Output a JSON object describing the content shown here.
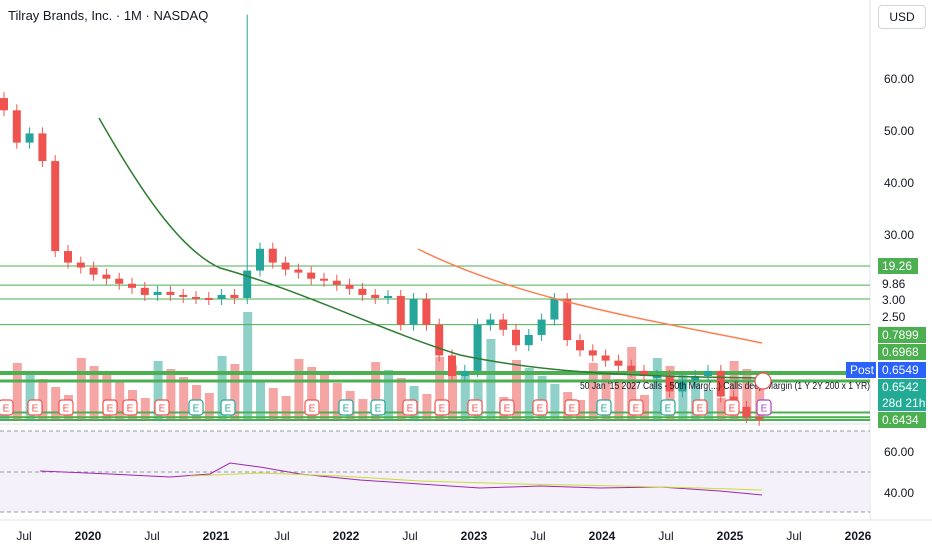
{
  "header": {
    "title": "Tilray Brands, Inc. · 1M · NASDAQ"
  },
  "toolbar": {
    "currency_label": "USD"
  },
  "price_axis": {
    "ticks": [
      "60.00",
      "50.00",
      "40.00",
      "30.00"
    ]
  },
  "price_tags": [
    {
      "label": "19.26",
      "color": "#4caf50"
    },
    {
      "label": "9.86",
      "color": "#4caf50"
    },
    {
      "label": "3.00",
      "color": "#4caf50"
    },
    {
      "label": "2.50",
      "color": "#4caf50"
    },
    {
      "label": "0.7899",
      "color": "#4caf50"
    },
    {
      "label": "0.6968",
      "color": "#4caf50"
    },
    {
      "label": "Post",
      "color": "#2962ff"
    },
    {
      "label": "0.6549",
      "color": "#2962ff"
    },
    {
      "label": "0.6542",
      "color": "#22ab94"
    },
    {
      "label": "28d 21h",
      "color": "#22ab94"
    },
    {
      "label": "0.6434",
      "color": "#4caf50"
    }
  ],
  "annotation": {
    "text": "50 Jan '15 2027 Calls - 50th Marg(...) Calls deep Margin (1 Y 2Y 200 x 1 YR)"
  },
  "rsi": {
    "ticks": [
      "60.00",
      "40.00"
    ]
  },
  "time_axis": {
    "ticks": [
      {
        "label": "Jul",
        "bold": false
      },
      {
        "label": "2020",
        "bold": true
      },
      {
        "label": "Jul",
        "bold": false
      },
      {
        "label": "2021",
        "bold": true
      },
      {
        "label": "Jul",
        "bold": false
      },
      {
        "label": "2022",
        "bold": true
      },
      {
        "label": "Jul",
        "bold": false
      },
      {
        "label": "2023",
        "bold": true
      },
      {
        "label": "Jul",
        "bold": false
      },
      {
        "label": "2024",
        "bold": true
      },
      {
        "label": "Jul",
        "bold": false
      },
      {
        "label": "2025",
        "bold": true
      },
      {
        "label": "Jul",
        "bold": false
      },
      {
        "label": "2026",
        "bold": true
      }
    ]
  },
  "earnings_marker_label": "E",
  "colors": {
    "up": "#26a69a",
    "down": "#ef5350",
    "up_volume": "#8fd1c9",
    "down_volume": "#f4a5a4",
    "ma_green": "#2e7d32",
    "ma_orange": "#ff7f50",
    "hline": "#4caf50",
    "rsi_line": "#9c27b0",
    "rsi_ma": "#cddc39",
    "rsi_band": "#ede7f6"
  },
  "chart_data": {
    "type": "candlestick",
    "interval": "1M",
    "price_range_approx": [
      0,
      68
    ],
    "candles_approx_close": [
      53.0,
      46.0,
      48.0,
      42.0,
      22.5,
      20.0,
      18.5,
      15.0,
      13.0,
      10.5,
      8.5,
      5.0,
      6.5,
      5.0,
      4.0,
      3.5,
      3.0,
      5.0,
      3.5,
      17.0,
      23.0,
      20.0,
      17.5,
      16.0,
      13.0,
      12.0,
      10.0,
      8.0,
      5.0,
      3.5,
      4.5,
      2.5,
      3.0,
      2.5,
      1.9,
      1.5,
      1.6,
      2.5,
      2.6,
      2.4,
      2.1,
      2.3,
      2.6,
      3.0,
      2.2,
      2.0,
      1.9,
      1.8,
      1.7,
      1.6,
      1.5,
      1.5,
      1.2,
      1.4,
      1.5,
      1.6,
      1.1,
      0.9,
      0.7,
      0.65
    ],
    "horizontal_levels": [
      19.26,
      9.86,
      3.0,
      2.5,
      0.7899,
      0.6968,
      0.6434
    ],
    "last_price": 0.6542,
    "post_market_price": 0.6549
  }
}
